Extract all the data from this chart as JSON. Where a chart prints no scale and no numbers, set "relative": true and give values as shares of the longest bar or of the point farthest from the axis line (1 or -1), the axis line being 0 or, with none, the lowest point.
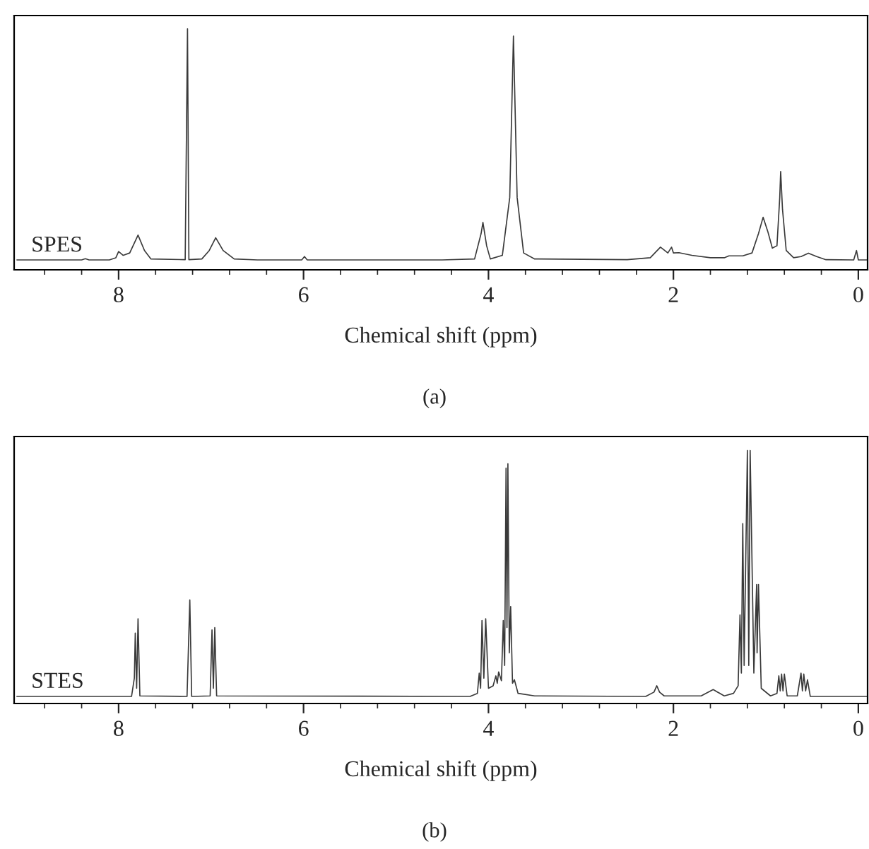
{
  "chart_data": [
    {
      "type": "line",
      "relative": true,
      "xlabel": "Chemical shift (ppm)",
      "annotations": [
        "(a)"
      ],
      "legend": false,
      "grid": false,
      "xlim": [
        9.13,
        -0.1
      ],
      "xticks": [
        8,
        6,
        4,
        2,
        0,
        {
          "value": 8.8,
          "label": null
        },
        {
          "value": 8.4,
          "label": null
        },
        {
          "value": 7.6,
          "label": null
        },
        {
          "value": 7.2,
          "label": null
        },
        {
          "value": 6.8,
          "label": null
        },
        {
          "value": 6.4,
          "label": null
        },
        {
          "value": 5.6,
          "label": null
        },
        {
          "value": 5.2,
          "label": null
        },
        {
          "value": 4.8,
          "label": null
        },
        {
          "value": 4.4,
          "label": null
        },
        {
          "value": 3.6,
          "label": null
        },
        {
          "value": 3.2,
          "label": null
        },
        {
          "value": 2.8,
          "label": null
        },
        {
          "value": 2.4,
          "label": null
        },
        {
          "value": 1.6,
          "label": null
        },
        {
          "value": 1.2,
          "label": null
        },
        {
          "value": 0.8,
          "label": null
        },
        {
          "value": 0.4,
          "label": null
        }
      ],
      "series": [
        {
          "name": "SPES",
          "color": "#3a3a3a",
          "x": [
            9.1,
            8.4,
            8.36,
            8.32,
            8.1,
            8.03,
            8.0,
            7.95,
            7.88,
            7.79,
            7.72,
            7.65,
            7.28,
            7.255,
            7.24,
            7.1,
            7.02,
            6.95,
            6.87,
            6.75,
            6.5,
            6.02,
            5.99,
            5.96,
            4.5,
            4.15,
            4.08,
            4.06,
            4.02,
            3.98,
            3.85,
            3.77,
            3.73,
            3.69,
            3.62,
            3.5,
            2.5,
            2.25,
            2.14,
            2.06,
            2.02,
            2.0,
            1.94,
            1.8,
            1.6,
            1.45,
            1.4,
            1.25,
            1.15,
            1.08,
            1.03,
            0.98,
            0.93,
            0.88,
            0.85,
            0.84,
            0.82,
            0.78,
            0.7,
            0.62,
            0.54,
            0.45,
            0.35,
            0.05,
            0.02,
            0.0,
            -0.09
          ],
          "values": [
            0.041,
            0.041,
            0.046,
            0.041,
            0.041,
            0.05,
            0.076,
            0.06,
            0.07,
            0.144,
            0.08,
            0.045,
            0.042,
            1.0,
            0.042,
            0.045,
            0.08,
            0.133,
            0.08,
            0.045,
            0.041,
            0.041,
            0.055,
            0.041,
            0.041,
            0.045,
            0.15,
            0.197,
            0.1,
            0.045,
            0.06,
            0.3,
            0.97,
            0.3,
            0.07,
            0.045,
            0.042,
            0.05,
            0.094,
            0.07,
            0.094,
            0.07,
            0.071,
            0.06,
            0.05,
            0.05,
            0.058,
            0.058,
            0.07,
            0.15,
            0.218,
            0.16,
            0.09,
            0.1,
            0.3,
            0.408,
            0.25,
            0.08,
            0.05,
            0.055,
            0.069,
            0.055,
            0.042,
            0.041,
            0.08,
            0.041,
            0.041
          ]
        }
      ]
    },
    {
      "type": "line",
      "relative": true,
      "xlabel": "Chemical shift (ppm)",
      "annotations": [
        "(b)"
      ],
      "legend": false,
      "grid": false,
      "xlim": [
        9.13,
        -0.1
      ],
      "xticks": [
        8,
        6,
        4,
        2,
        0,
        {
          "value": 8.8,
          "label": null
        },
        {
          "value": 8.4,
          "label": null
        },
        {
          "value": 7.6,
          "label": null
        },
        {
          "value": 7.2,
          "label": null
        },
        {
          "value": 6.8,
          "label": null
        },
        {
          "value": 6.4,
          "label": null
        },
        {
          "value": 5.6,
          "label": null
        },
        {
          "value": 5.2,
          "label": null
        },
        {
          "value": 4.8,
          "label": null
        },
        {
          "value": 4.4,
          "label": null
        },
        {
          "value": 3.6,
          "label": null
        },
        {
          "value": 3.2,
          "label": null
        },
        {
          "value": 2.8,
          "label": null
        },
        {
          "value": 2.4,
          "label": null
        },
        {
          "value": 1.6,
          "label": null
        },
        {
          "value": 1.2,
          "label": null
        },
        {
          "value": 0.8,
          "label": null
        },
        {
          "value": 0.4,
          "label": null
        }
      ],
      "series": [
        {
          "name": "STES",
          "color": "#3a3a3a",
          "x": [
            9.1,
            7.86,
            7.83,
            7.82,
            7.805,
            7.79,
            7.77,
            7.26,
            7.23,
            7.21,
            7.01,
            6.99,
            6.975,
            6.96,
            6.94,
            4.2,
            4.12,
            4.1,
            4.085,
            4.07,
            4.05,
            4.03,
            4.0,
            3.95,
            3.92,
            3.905,
            3.89,
            3.86,
            3.84,
            3.825,
            3.81,
            3.8,
            3.79,
            3.775,
            3.76,
            3.74,
            3.72,
            3.68,
            3.5,
            2.3,
            2.21,
            2.18,
            2.15,
            2.1,
            1.7,
            1.57,
            1.45,
            1.35,
            1.3,
            1.28,
            1.265,
            1.25,
            1.235,
            1.2,
            1.185,
            1.17,
            1.13,
            1.1,
            1.095,
            1.08,
            1.05,
            0.95,
            0.88,
            0.86,
            0.845,
            0.83,
            0.815,
            0.8,
            0.77,
            0.66,
            0.62,
            0.605,
            0.59,
            0.57,
            0.55,
            0.52,
            -0.09
          ],
          "values": [
            0.028,
            0.028,
            0.1,
            0.278,
            0.06,
            0.335,
            0.03,
            0.028,
            0.409,
            0.028,
            0.03,
            0.291,
            0.06,
            0.3,
            0.03,
            0.028,
            0.04,
            0.12,
            0.06,
            0.328,
            0.1,
            0.335,
            0.06,
            0.07,
            0.109,
            0.08,
            0.125,
            0.09,
            0.328,
            0.15,
            0.93,
            0.3,
            0.947,
            0.2,
            0.383,
            0.08,
            0.094,
            0.04,
            0.03,
            0.028,
            0.045,
            0.07,
            0.045,
            0.03,
            0.03,
            0.055,
            0.03,
            0.04,
            0.07,
            0.35,
            0.12,
            0.711,
            0.15,
            1.0,
            0.15,
            1.0,
            0.12,
            0.47,
            0.2,
            0.47,
            0.06,
            0.03,
            0.04,
            0.109,
            0.05,
            0.116,
            0.05,
            0.116,
            0.03,
            0.03,
            0.12,
            0.05,
            0.116,
            0.05,
            0.094,
            0.028,
            0.028
          ]
        }
      ]
    }
  ]
}
